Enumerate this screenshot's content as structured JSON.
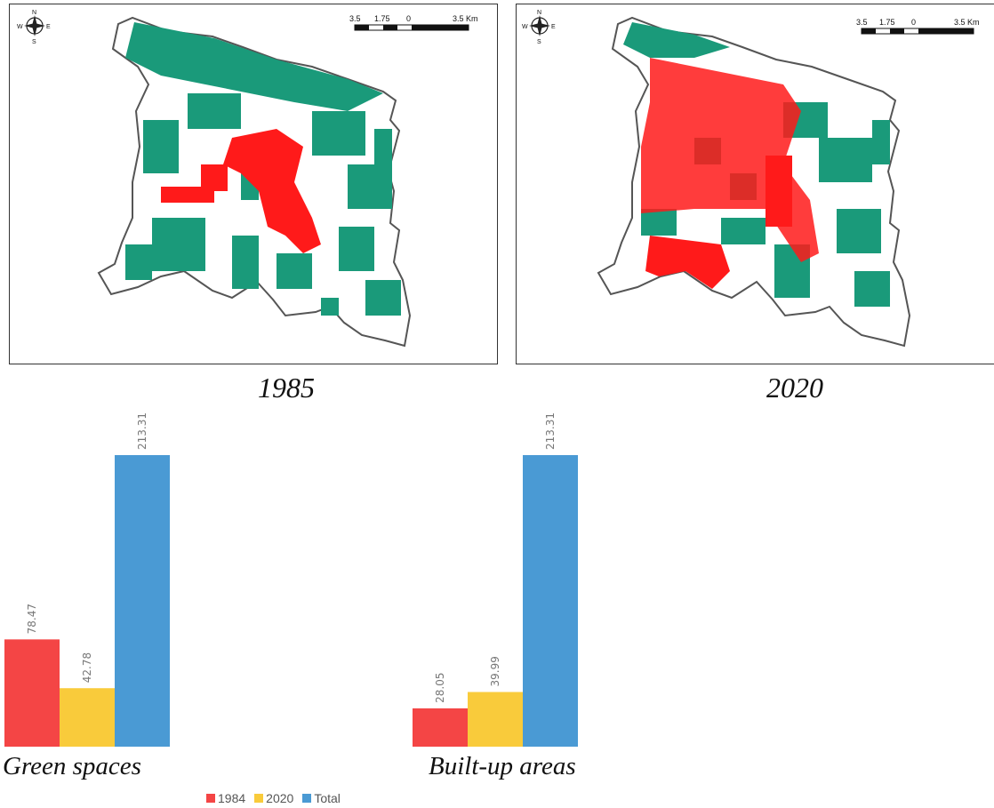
{
  "maps": [
    {
      "year_label": "1985",
      "scale": {
        "labels": [
          "3.5",
          "1.75",
          "0",
          "3.5 Km"
        ]
      },
      "compass": {
        "n": "N",
        "s": "S",
        "e": "E",
        "w": "W"
      }
    },
    {
      "year_label": "2020",
      "scale": {
        "labels": [
          "3.5",
          "1.75",
          "0",
          "3.5 Km"
        ]
      },
      "compass": {
        "n": "N",
        "s": "S",
        "e": "E",
        "w": "W"
      }
    }
  ],
  "colors": {
    "green_space": "#1a9a7a",
    "built_up": "#ff1a1a",
    "bar_1984": "#f44545",
    "bar_2020": "#f9cb3b",
    "bar_total": "#4a9ad4",
    "boundary": "#555555"
  },
  "chart_data": [
    {
      "type": "bar",
      "categories": [
        "1984",
        "2020",
        "Total"
      ],
      "values": [
        78.47,
        42.78,
        213.31
      ],
      "title": "Green spaces",
      "ylim": [
        0,
        213.31
      ]
    },
    {
      "type": "bar",
      "categories": [
        "1984",
        "2020",
        "Total"
      ],
      "values": [
        28.05,
        39.99,
        213.31
      ],
      "title": "Built-up areas",
      "ylim": [
        0,
        213.31
      ]
    }
  ],
  "labels": {
    "v0": "78.47",
    "v1": "42.78",
    "v2": "213.31",
    "v3": "28.05",
    "v4": "39.99",
    "v5": "213.31"
  },
  "legend": [
    {
      "label": "1984",
      "color": "#f44545"
    },
    {
      "label": "2020",
      "color": "#f9cb3b"
    },
    {
      "label": "Total",
      "color": "#4a9ad4"
    }
  ]
}
